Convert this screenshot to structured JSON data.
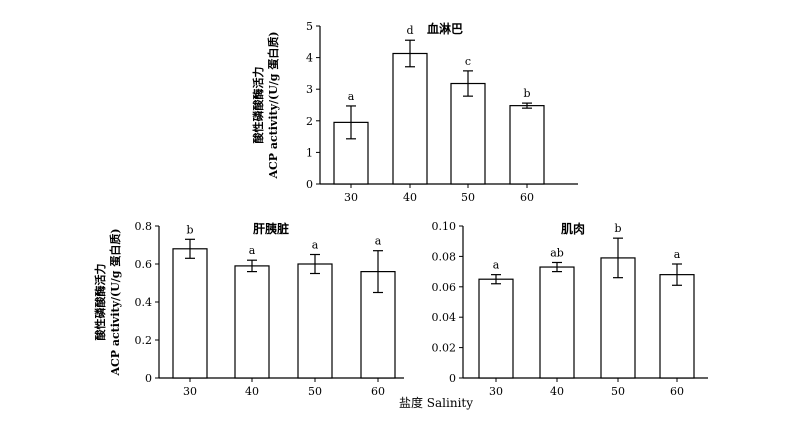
{
  "shared_xlabel": "盐度 Salinity",
  "chart_data": [
    {
      "type": "bar",
      "title": "血淋巴",
      "ylabel_line1": "酸性磷酸酶活力",
      "ylabel_line2": "ACP activity/(U/g 蛋白质)",
      "categories": [
        "30",
        "40",
        "50",
        "60"
      ],
      "values": [
        1.95,
        4.13,
        3.18,
        2.48
      ],
      "errors": [
        0.52,
        0.42,
        0.4,
        0.08
      ],
      "significance": [
        "a",
        "d",
        "c",
        "b"
      ],
      "ylim": [
        0,
        5
      ],
      "yticks": [
        0,
        1,
        2,
        3,
        4,
        5
      ],
      "ytick_labels": [
        "0",
        "1",
        "2",
        "3",
        "4",
        "5"
      ]
    },
    {
      "type": "bar",
      "title": "肝胰脏",
      "ylabel_line1": "酸性磷酸酶活力",
      "ylabel_line2": "ACP activity/(U/g 蛋白质)",
      "categories": [
        "30",
        "40",
        "50",
        "60"
      ],
      "values": [
        0.68,
        0.59,
        0.6,
        0.56
      ],
      "errors": [
        0.05,
        0.03,
        0.05,
        0.11
      ],
      "significance": [
        "b",
        "a",
        "a",
        "a"
      ],
      "ylim": [
        0,
        0.8
      ],
      "yticks": [
        0,
        0.2,
        0.4,
        0.6,
        0.8
      ],
      "ytick_labels": [
        "0",
        "0.2",
        "0.4",
        "0.6",
        "0.8"
      ]
    },
    {
      "type": "bar",
      "title": "肌肉",
      "ylabel_line1": "",
      "ylabel_line2": "",
      "categories": [
        "30",
        "40",
        "50",
        "60"
      ],
      "values": [
        0.065,
        0.073,
        0.079,
        0.068
      ],
      "errors": [
        0.003,
        0.003,
        0.013,
        0.007
      ],
      "significance": [
        "a",
        "ab",
        "b",
        "a"
      ],
      "ylim": [
        0,
        0.1
      ],
      "yticks": [
        0,
        0.02,
        0.04,
        0.06,
        0.08,
        0.1
      ],
      "ytick_labels": [
        "0",
        "0.02",
        "0.04",
        "0.06",
        "0.08",
        "0.10"
      ]
    }
  ]
}
